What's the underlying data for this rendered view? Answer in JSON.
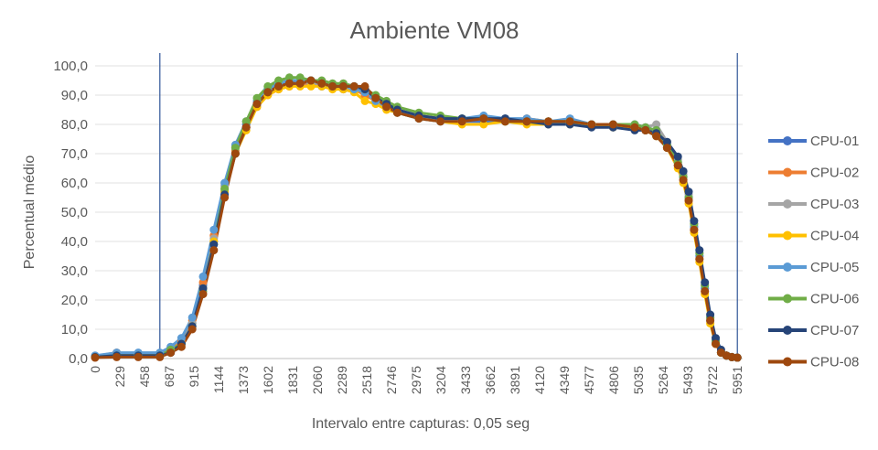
{
  "chart_data": {
    "type": "line",
    "title": "Ambiente VM08",
    "xlabel": "Intervalo entre capturas: 0,05 seg",
    "ylabel": "Percentual médio",
    "ylim": [
      0,
      100
    ],
    "xlim": [
      0,
      6000
    ],
    "y_ticks": [
      "0,0",
      "10,0",
      "20,0",
      "30,0",
      "40,0",
      "50,0",
      "60,0",
      "70,0",
      "80,0",
      "90,0",
      "100,0"
    ],
    "x_ticks": [
      0,
      229,
      458,
      687,
      915,
      1144,
      1373,
      1602,
      1831,
      2060,
      2289,
      2518,
      2746,
      2975,
      3204,
      3433,
      3662,
      3891,
      4120,
      4349,
      4577,
      4806,
      5035,
      5264,
      5493,
      5722,
      5951
    ],
    "vertical_markers": [
      600,
      5951
    ],
    "grid": "horizontal",
    "legend_position": "right",
    "series": [
      {
        "name": "CPU-01",
        "color": "#4472C4",
        "x": [
          0,
          200,
          400,
          600,
          700,
          800,
          900,
          1000,
          1100,
          1200,
          1300,
          1400,
          1500,
          1600,
          1700,
          1800,
          1900,
          2000,
          2100,
          2200,
          2300,
          2400,
          2500,
          2600,
          2700,
          2800,
          3000,
          3200,
          3400,
          3600,
          3800,
          4000,
          4200,
          4400,
          4600,
          4800,
          5000,
          5100,
          5200,
          5300,
          5400,
          5450,
          5500,
          5550,
          5600,
          5650,
          5700,
          5750,
          5800,
          5850,
          5900,
          5951
        ],
        "values": [
          0.5,
          1,
          1,
          1,
          3,
          5,
          12,
          25,
          40,
          57,
          72,
          80,
          87,
          91,
          93,
          94,
          94,
          94,
          93,
          93,
          92,
          92,
          91,
          88,
          86,
          84,
          82,
          81,
          81,
          81,
          81,
          81,
          80,
          80,
          80,
          79,
          79,
          78,
          76,
          72,
          66,
          62,
          55,
          45,
          35,
          24,
          14,
          6,
          2,
          1,
          0.5,
          0.3
        ]
      },
      {
        "name": "CPU-02",
        "color": "#ED7D31",
        "x": [
          0,
          200,
          400,
          600,
          700,
          800,
          900,
          1000,
          1100,
          1200,
          1300,
          1400,
          1500,
          1600,
          1700,
          1800,
          1900,
          2000,
          2100,
          2200,
          2300,
          2400,
          2500,
          2600,
          2700,
          2800,
          3000,
          3200,
          3400,
          3600,
          3800,
          4000,
          4200,
          4400,
          4600,
          4800,
          5000,
          5100,
          5200,
          5300,
          5400,
          5450,
          5500,
          5550,
          5600,
          5650,
          5700,
          5750,
          5800,
          5850,
          5900,
          5951
        ],
        "values": [
          0.8,
          2,
          1.5,
          1,
          3,
          6,
          13,
          26,
          42,
          58,
          71,
          79,
          86,
          90,
          92,
          93,
          94,
          94,
          94,
          93,
          93,
          92,
          90,
          88,
          86,
          84,
          83,
          82,
          81,
          82,
          81,
          82,
          81,
          81,
          80,
          80,
          79,
          78,
          77,
          73,
          66,
          61,
          54,
          44,
          34,
          23,
          13,
          5,
          2,
          1,
          0.5,
          0.3
        ]
      },
      {
        "name": "CPU-03",
        "color": "#A5A5A5",
        "x": [
          0,
          200,
          400,
          600,
          700,
          800,
          900,
          1000,
          1100,
          1200,
          1300,
          1400,
          1500,
          1600,
          1700,
          1800,
          1900,
          2000,
          2100,
          2200,
          2300,
          2400,
          2500,
          2600,
          2700,
          2800,
          3000,
          3200,
          3400,
          3600,
          3800,
          4000,
          4200,
          4400,
          4600,
          4800,
          5000,
          5100,
          5200,
          5300,
          5400,
          5450,
          5500,
          5550,
          5600,
          5650,
          5700,
          5750,
          5800,
          5850,
          5900,
          5951
        ],
        "values": [
          0.5,
          1,
          1,
          1,
          2,
          5,
          12,
          24,
          41,
          59,
          73,
          81,
          88,
          92,
          94,
          95,
          95,
          94,
          94,
          93,
          92,
          92,
          91,
          89,
          87,
          85,
          83,
          82,
          82,
          82,
          82,
          81,
          81,
          81,
          80,
          80,
          79,
          79,
          80,
          74,
          68,
          63,
          56,
          46,
          36,
          25,
          14,
          6,
          2,
          1,
          0.5,
          0.3
        ]
      },
      {
        "name": "CPU-04",
        "color": "#FFC000",
        "x": [
          0,
          200,
          400,
          600,
          700,
          800,
          900,
          1000,
          1100,
          1200,
          1300,
          1400,
          1500,
          1600,
          1700,
          1800,
          1900,
          2000,
          2100,
          2200,
          2300,
          2400,
          2500,
          2600,
          2700,
          2800,
          3000,
          3200,
          3400,
          3600,
          3800,
          4000,
          4200,
          4400,
          4600,
          4800,
          5000,
          5100,
          5200,
          5300,
          5400,
          5450,
          5500,
          5550,
          5600,
          5650,
          5700,
          5750,
          5800,
          5850,
          5900,
          5951
        ],
        "values": [
          0.5,
          1,
          1,
          1,
          3,
          5,
          11,
          24,
          40,
          57,
          70,
          78,
          86,
          90,
          92,
          93,
          93,
          93,
          93,
          92,
          92,
          91,
          88,
          87,
          85,
          84,
          82,
          81,
          80,
          80,
          81,
          80,
          80,
          80,
          80,
          79,
          79,
          78,
          76,
          72,
          65,
          60,
          53,
          43,
          33,
          22,
          12,
          5,
          2,
          1,
          0.5,
          0.3
        ]
      },
      {
        "name": "CPU-05",
        "color": "#5B9BD5",
        "x": [
          0,
          200,
          400,
          600,
          700,
          800,
          900,
          1000,
          1100,
          1200,
          1300,
          1400,
          1500,
          1600,
          1700,
          1800,
          1900,
          2000,
          2100,
          2200,
          2300,
          2400,
          2500,
          2600,
          2700,
          2800,
          3000,
          3200,
          3400,
          3600,
          3800,
          4000,
          4200,
          4400,
          4600,
          4800,
          5000,
          5100,
          5200,
          5300,
          5400,
          5450,
          5500,
          5550,
          5600,
          5650,
          5700,
          5750,
          5800,
          5850,
          5900,
          5951
        ],
        "values": [
          1,
          2,
          2,
          2,
          4,
          7,
          14,
          28,
          44,
          60,
          73,
          81,
          88,
          92,
          94,
          95,
          95,
          95,
          94,
          93,
          93,
          92,
          91,
          88,
          86,
          84,
          82,
          81,
          82,
          83,
          82,
          82,
          81,
          82,
          80,
          80,
          80,
          79,
          78,
          73,
          67,
          62,
          55,
          45,
          35,
          24,
          13,
          6,
          2,
          1,
          0.5,
          0.3
        ]
      },
      {
        "name": "CPU-06",
        "color": "#70AD47",
        "x": [
          0,
          200,
          400,
          600,
          700,
          800,
          900,
          1000,
          1100,
          1200,
          1300,
          1400,
          1500,
          1600,
          1700,
          1800,
          1900,
          2000,
          2100,
          2200,
          2300,
          2400,
          2500,
          2600,
          2700,
          2800,
          3000,
          3200,
          3400,
          3600,
          3800,
          4000,
          4200,
          4400,
          4600,
          4800,
          5000,
          5100,
          5200,
          5300,
          5400,
          5450,
          5500,
          5550,
          5600,
          5650,
          5700,
          5750,
          5800,
          5850,
          5900,
          5951
        ],
        "values": [
          0.5,
          1,
          1,
          1,
          3,
          5,
          11,
          23,
          39,
          58,
          72,
          81,
          89,
          93,
          95,
          96,
          96,
          95,
          95,
          94,
          94,
          93,
          92,
          90,
          88,
          86,
          84,
          83,
          82,
          82,
          81,
          81,
          81,
          81,
          80,
          80,
          80,
          79,
          78,
          73,
          67,
          62,
          55,
          46,
          36,
          25,
          14,
          6,
          2,
          1,
          0.5,
          0.3
        ]
      },
      {
        "name": "CPU-07",
        "color": "#264478",
        "x": [
          0,
          200,
          400,
          600,
          700,
          800,
          900,
          1000,
          1100,
          1200,
          1300,
          1400,
          1500,
          1600,
          1700,
          1800,
          1900,
          2000,
          2100,
          2200,
          2300,
          2400,
          2500,
          2600,
          2700,
          2800,
          3000,
          3200,
          3400,
          3600,
          3800,
          4000,
          4200,
          4400,
          4600,
          4800,
          5000,
          5100,
          5200,
          5300,
          5400,
          5450,
          5500,
          5550,
          5600,
          5650,
          5700,
          5750,
          5800,
          5850,
          5900,
          5951
        ],
        "values": [
          0.5,
          1,
          1,
          1,
          2,
          5,
          11,
          24,
          39,
          56,
          70,
          79,
          87,
          91,
          93,
          94,
          94,
          95,
          94,
          93,
          93,
          93,
          92,
          89,
          87,
          85,
          83,
          82,
          82,
          82,
          82,
          81,
          80,
          80,
          79,
          79,
          78,
          78,
          77,
          74,
          69,
          64,
          57,
          47,
          37,
          26,
          15,
          7,
          3,
          1,
          0.5,
          0.3
        ]
      },
      {
        "name": "CPU-08",
        "color": "#9E480E",
        "x": [
          0,
          200,
          400,
          600,
          700,
          800,
          900,
          1000,
          1100,
          1200,
          1300,
          1400,
          1500,
          1600,
          1700,
          1800,
          1900,
          2000,
          2100,
          2200,
          2300,
          2400,
          2500,
          2600,
          2700,
          2800,
          3000,
          3200,
          3400,
          3600,
          3800,
          4000,
          4200,
          4400,
          4600,
          4800,
          5000,
          5100,
          5200,
          5300,
          5400,
          5450,
          5500,
          5550,
          5600,
          5650,
          5700,
          5750,
          5800,
          5850,
          5900,
          5951
        ],
        "values": [
          0.3,
          0.5,
          0.5,
          0.5,
          2,
          4,
          10,
          22,
          37,
          55,
          70,
          79,
          87,
          91,
          93,
          94,
          94,
          95,
          94,
          93,
          93,
          93,
          93,
          89,
          86,
          84,
          82,
          81,
          81,
          82,
          81,
          81,
          81,
          81,
          80,
          80,
          79,
          78,
          76,
          72,
          66,
          61,
          54,
          44,
          34,
          23,
          13,
          5,
          2,
          1,
          0.5,
          0.3
        ]
      }
    ]
  }
}
